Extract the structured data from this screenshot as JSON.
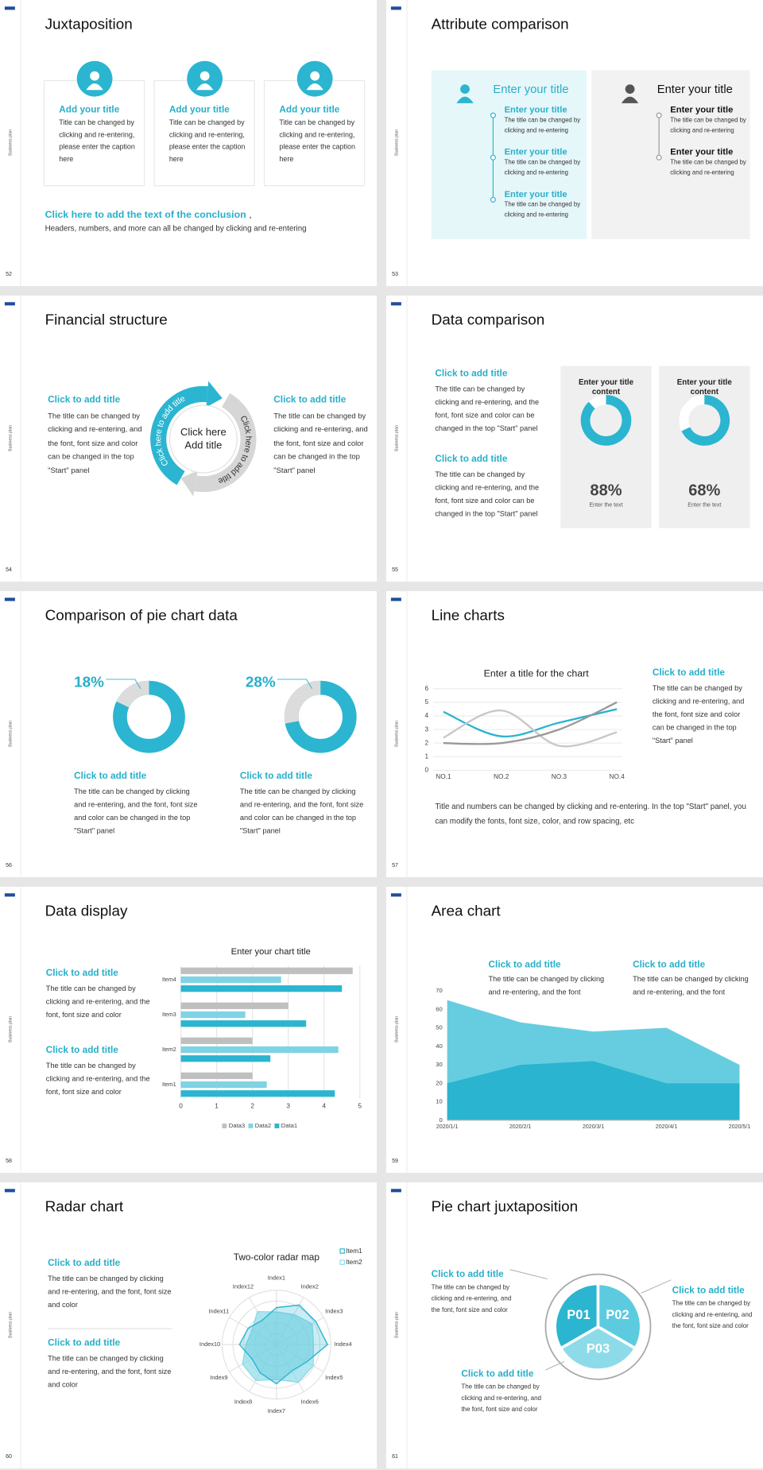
{
  "slides": [
    {
      "page": "52",
      "side": "Business plan",
      "title": "Juxtaposition",
      "cards": [
        {
          "title": "Add your title",
          "text": "Title can be changed by clicking and re-entering, please enter the caption here"
        },
        {
          "title": "Add your title",
          "text": "Title can be changed by clicking and re-entering, please enter the caption here"
        },
        {
          "title": "Add your title",
          "text": "Title can be changed by clicking and re-entering, please enter the caption here"
        }
      ],
      "conclusion": "Click here to add the text of the conclusion",
      "conclusion_punct": ",",
      "note": "Headers, numbers, and more can all be changed by clicking and re-entering"
    },
    {
      "page": "53",
      "side": "Business plan",
      "title": "Attribute comparison",
      "panels": [
        {
          "title": "Enter your title",
          "items": [
            {
              "title": "Enter your title",
              "text": "The title can be changed by clicking and re-entering"
            },
            {
              "title": "Enter your title",
              "text": "The title can be changed by clicking and re-entering"
            },
            {
              "title": "Enter your title",
              "text": "The title can be changed by clicking and re-entering"
            }
          ]
        },
        {
          "title": "Enter your title",
          "items": [
            {
              "title": "Enter your title",
              "text": "The title can be changed by clicking and re-entering"
            },
            {
              "title": "Enter your title",
              "text": "The title can be changed by clicking and re-entering"
            }
          ]
        }
      ]
    },
    {
      "page": "54",
      "side": "Business plan",
      "title": "Financial structure",
      "blocks": [
        {
          "title": "Click to add title",
          "text": "The title can be changed by clicking and re-entering, and the font, font size and color can be changed in the top \"Start\" panel"
        },
        {
          "title": "Click to add title",
          "text": "The title can be changed by clicking and re-entering, and the font, font size and color can be changed in the top \"Start\" panel"
        }
      ],
      "center": "Click here Add title",
      "arc_labels": [
        "Click here to add title",
        "Click here to add title"
      ]
    },
    {
      "page": "55",
      "side": "Business plan",
      "title": "Data comparison",
      "blocks": [
        {
          "title": "Click to add title",
          "text": "The title can be changed by clicking and re-entering, and the font, font size and color can be changed in the top \"Start\" panel"
        },
        {
          "title": "Click to add title",
          "text": "The title can be changed by clicking and re-entering, and the font, font size and color can be changed in the top \"Start\" panel"
        }
      ],
      "chart": {
        "type": "donut",
        "categories": [
          "Enter your title content",
          "Enter your title content"
        ],
        "values": [
          88,
          68
        ],
        "value_labels": [
          "88%",
          "68%"
        ],
        "captions": [
          "Enter the text",
          "Enter the text"
        ],
        "color": "#2bb5d0"
      }
    },
    {
      "page": "56",
      "side": "Business plan",
      "title": "Comparison of pie chart data",
      "chart": {
        "type": "donut",
        "values": [
          18,
          28
        ],
        "value_labels": [
          "18%",
          "28%"
        ],
        "color": "#dcdcdc"
      },
      "blocks": [
        {
          "title": "Click to add title",
          "text": "The title can be changed by clicking and re-entering, and the font, font size and color can be changed in the top \"Start\" panel"
        },
        {
          "title": "Click to add title",
          "text": "The title can be changed by clicking and re-entering, and the font, font size and color can be changed in the top \"Start\" panel"
        }
      ]
    },
    {
      "page": "57",
      "side": "Business plan",
      "title": "Line charts",
      "chart": {
        "type": "line",
        "title": "Enter a title for the chart",
        "categories": [
          "NO.1",
          "NO.2",
          "NO.3",
          "NO.4"
        ],
        "series": [
          {
            "color": "#2bb5d0",
            "values": [
              4.3,
              2.5,
              3.5,
              4.5
            ]
          },
          {
            "color": "#c8c8c8",
            "values": [
              2.4,
              4.4,
              1.8,
              2.8
            ]
          },
          {
            "color": "#999999",
            "values": [
              2,
              2,
              3,
              5
            ]
          }
        ],
        "ylim": [
          0,
          6
        ],
        "yticks": [
          0,
          1,
          2,
          3,
          4,
          5,
          6
        ],
        "grid": true
      },
      "block": {
        "title": "Click to add title",
        "text": "The title can be changed by clicking and re-entering, and the font, font size and color can be changed in the top \"Start\" panel"
      },
      "note": "Title and numbers can be changed by clicking and re-entering. In the top \"Start\" panel, you can modify the fonts, font size, color, and row spacing, etc"
    },
    {
      "page": "58",
      "side": "Business plan",
      "title": "Data display",
      "blocks": [
        {
          "title": "Click to add title",
          "text": "The title can be changed by clicking and re-entering, and the font, font size and color"
        },
        {
          "title": "Click to add title",
          "text": "The title can be changed by clicking and re-entering, and the font, font size and color"
        }
      ],
      "chart": {
        "type": "bar",
        "orientation": "horizontal",
        "title": "Enter your chart title",
        "categories": [
          "Item1",
          "Item2",
          "Item3",
          "Item4"
        ],
        "series": [
          {
            "name": "Data1",
            "color": "#2bb5d0",
            "values": [
              4.3,
              2.5,
              3.5,
              4.5
            ]
          },
          {
            "name": "Data2",
            "color": "#7fd3e3",
            "values": [
              2.4,
              4.4,
              1.8,
              2.8
            ]
          },
          {
            "name": "Data3",
            "color": "#bfbfbf",
            "values": [
              2,
              2,
              3,
              4.8
            ]
          }
        ],
        "xlim": [
          0,
          5
        ],
        "xticks": [
          0,
          1,
          2,
          3,
          4,
          5
        ],
        "grid": true,
        "legend": "bottom"
      }
    },
    {
      "page": "59",
      "side": "Business plan",
      "title": "Area chart",
      "blocks": [
        {
          "title": "Click to add title",
          "text": "The title can be changed by clicking and re-entering, and the font"
        },
        {
          "title": "Click to add title",
          "text": "The title can be changed by clicking and re-entering, and the font"
        }
      ],
      "chart": {
        "type": "area",
        "categories": [
          "2020/1/1",
          "2020/2/1",
          "2020/3/1",
          "2020/4/1",
          "2020/5/1"
        ],
        "series": [
          {
            "color": "#66cde0",
            "values": [
              65,
              53,
              48,
              50,
              30
            ]
          },
          {
            "color": "#2ab4cf",
            "values": [
              20,
              30,
              32,
              20,
              20
            ]
          }
        ],
        "ylim": [
          0,
          70
        ],
        "yticks": [
          0,
          10,
          20,
          30,
          40,
          50,
          60,
          70
        ]
      }
    },
    {
      "page": "60",
      "side": "Business plan",
      "title": "Radar chart",
      "blocks": [
        {
          "title": "Click to add title",
          "text": "The title can be changed by clicking and re-entering, and the font, font size and color"
        },
        {
          "title": "Click to add title",
          "text": "The title can be changed by clicking and re-entering, and the font, font size and color"
        }
      ],
      "chart": {
        "type": "radar",
        "title": "Two-color radar map",
        "categories": [
          "Index1",
          "Index2",
          "Index3",
          "Index4",
          "Index5",
          "Index6",
          "Index7",
          "Index8",
          "Index9",
          "Index10",
          "Index11",
          "Index12"
        ],
        "series": [
          {
            "name": "Item1",
            "color": "#2bb5d0",
            "values": [
              3.4,
              4.2,
              4.2,
              4.7,
              3.2,
              2.8,
              3.6,
              3.0,
              2.6,
              3.4,
              3.0,
              2.6
            ]
          },
          {
            "name": "Item2",
            "color": "#8ddbe9",
            "values": [
              3.0,
              3.2,
              3.8,
              3.4,
              3.9,
              4.0,
              3.2,
              3.8,
              3.6,
              2.8,
              2.6,
              3.5
            ]
          }
        ],
        "rlim": [
          0,
          5
        ]
      }
    },
    {
      "page": "61",
      "side": "Business plan",
      "title": "Pie chart juxtaposition",
      "segments": [
        "P01",
        "P02",
        "P03"
      ],
      "blocks": [
        {
          "title": "Click to add title",
          "text": "The title can be changed by clicking and re-entering, and the font, font size and color"
        },
        {
          "title": "Click to add title",
          "text": "The title can be changed by clicking and re-entering, and the font, font size and color"
        },
        {
          "title": "Click to add title",
          "text": "The title can be changed by clicking and re-entering, and the font, font size and color"
        }
      ]
    }
  ]
}
